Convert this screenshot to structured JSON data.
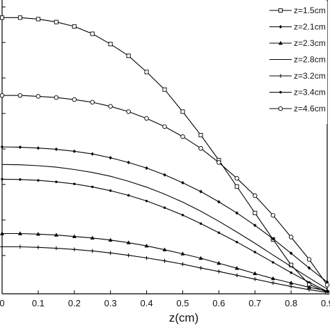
{
  "chart_data": {
    "type": "line",
    "title": "",
    "xlabel": "z(cm)",
    "ylabel": "",
    "xlim": [
      0,
      0.9
    ],
    "ylim": [
      0,
      10
    ],
    "xticks": [
      "0",
      "0.1",
      "0.2",
      "0.3",
      "0.4",
      "0.5",
      "0.6",
      "0.7",
      "0.8",
      "0.9"
    ],
    "grid": false,
    "legend_position": "top-right",
    "series": [
      {
        "name": "z=1.5cm",
        "marker": "square",
        "x": [
          0,
          0.05,
          0.1,
          0.15,
          0.2,
          0.25,
          0.3,
          0.35,
          0.4,
          0.45,
          0.5,
          0.55,
          0.6,
          0.65,
          0.7,
          0.75,
          0.8,
          0.85,
          0.9
        ],
        "y": [
          9.4,
          9.4,
          9.35,
          9.25,
          9.1,
          8.85,
          8.5,
          8.1,
          7.55,
          6.95,
          6.2,
          5.4,
          4.55,
          3.65,
          2.75,
          1.85,
          0.98,
          0.32,
          0.05
        ]
      },
      {
        "name": "z=2.1cm",
        "marker": "diamond",
        "x": [
          0,
          0.05,
          0.1,
          0.15,
          0.2,
          0.25,
          0.3,
          0.35,
          0.4,
          0.45,
          0.5,
          0.55,
          0.6,
          0.65,
          0.7,
          0.75,
          0.8,
          0.85,
          0.9
        ],
        "y": [
          5.0,
          4.99,
          4.96,
          4.92,
          4.85,
          4.76,
          4.63,
          4.47,
          4.28,
          4.05,
          3.78,
          3.48,
          3.13,
          2.75,
          2.33,
          1.87,
          1.38,
          0.88,
          0.4
        ]
      },
      {
        "name": "z=2.3cm",
        "marker": "triangle",
        "x": [
          0,
          0.05,
          0.1,
          0.15,
          0.2,
          0.25,
          0.3,
          0.35,
          0.4,
          0.45,
          0.5,
          0.55,
          0.6,
          0.65,
          0.7,
          0.75,
          0.8,
          0.85,
          0.9
        ],
        "y": [
          2.05,
          2.05,
          2.03,
          2.0,
          1.95,
          1.9,
          1.83,
          1.74,
          1.63,
          1.5,
          1.36,
          1.21,
          1.04,
          0.87,
          0.69,
          0.52,
          0.37,
          0.22,
          0.1
        ]
      },
      {
        "name": "z=2.8cm",
        "marker": "none",
        "x": [
          0,
          0.05,
          0.1,
          0.15,
          0.2,
          0.25,
          0.3,
          0.35,
          0.4,
          0.45,
          0.5,
          0.55,
          0.6,
          0.65,
          0.7,
          0.75,
          0.8,
          0.85,
          0.9
        ],
        "y": [
          4.4,
          4.39,
          4.36,
          4.31,
          4.23,
          4.13,
          4.0,
          3.83,
          3.63,
          3.39,
          3.12,
          2.81,
          2.47,
          2.1,
          1.72,
          1.32,
          0.93,
          0.54,
          0.16
        ]
      },
      {
        "name": "z=3.2cm",
        "marker": "plus",
        "x": [
          0,
          0.05,
          0.1,
          0.15,
          0.2,
          0.25,
          0.3,
          0.35,
          0.4,
          0.45,
          0.5,
          0.55,
          0.6,
          0.65,
          0.7,
          0.75,
          0.8,
          0.85,
          0.9
        ],
        "y": [
          1.6,
          1.6,
          1.58,
          1.55,
          1.51,
          1.46,
          1.39,
          1.31,
          1.22,
          1.12,
          1.01,
          0.88,
          0.76,
          0.63,
          0.5,
          0.37,
          0.25,
          0.14,
          0.05
        ]
      },
      {
        "name": "z=3.4cm",
        "marker": "dot",
        "x": [
          0,
          0.05,
          0.1,
          0.15,
          0.2,
          0.25,
          0.3,
          0.35,
          0.4,
          0.45,
          0.5,
          0.55,
          0.6,
          0.65,
          0.7,
          0.75,
          0.8,
          0.85,
          0.9
        ],
        "y": [
          3.9,
          3.89,
          3.86,
          3.81,
          3.74,
          3.64,
          3.51,
          3.35,
          3.16,
          2.93,
          2.68,
          2.39,
          2.08,
          1.76,
          1.42,
          1.07,
          0.72,
          0.39,
          0.08
        ]
      },
      {
        "name": "z=4.6cm",
        "marker": "circle",
        "x": [
          0,
          0.05,
          0.1,
          0.15,
          0.2,
          0.25,
          0.3,
          0.35,
          0.4,
          0.45,
          0.5,
          0.55,
          0.6,
          0.65,
          0.7,
          0.75,
          0.8,
          0.85,
          0.9
        ],
        "y": [
          6.75,
          6.75,
          6.72,
          6.68,
          6.61,
          6.52,
          6.38,
          6.2,
          5.97,
          5.69,
          5.35,
          4.95,
          4.47,
          3.93,
          3.34,
          2.67,
          1.93,
          1.17,
          0.3
        ]
      }
    ]
  }
}
